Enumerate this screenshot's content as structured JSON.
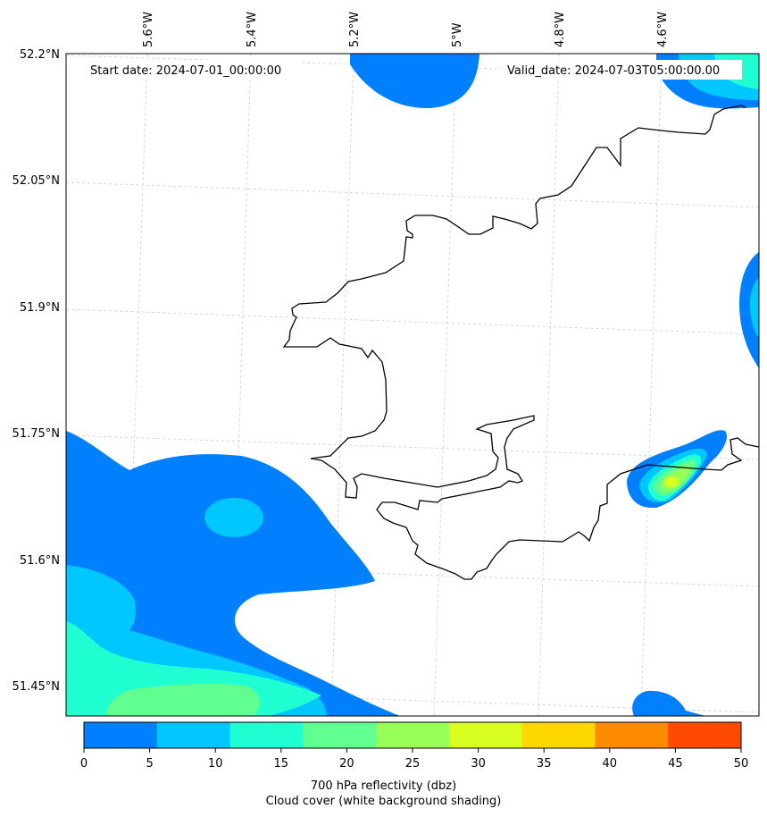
{
  "map": {
    "start_label": "Start date: 2024-07-01_00:00:00",
    "valid_label": "Valid_date: 2024-07-03T05:00:00.00",
    "lon_labels": [
      "5.6°W",
      "5.4°W",
      "5.2°W",
      "5°W",
      "4.8°W",
      "4.6°W"
    ],
    "lat_labels": [
      "52.2°N",
      "52.05°N",
      "51.9°N",
      "51.75°N",
      "51.6°N",
      "51.45°N"
    ]
  },
  "colorbar": {
    "ticks": [
      "0",
      "5",
      "10",
      "15",
      "20",
      "25",
      "30",
      "35",
      "40",
      "45",
      "50"
    ],
    "colors": [
      "#0080ff",
      "#00c8ff",
      "#20ffd2",
      "#60ff90",
      "#98ff58",
      "#d8ff20",
      "#ffd800",
      "#ff8c00",
      "#ff4a00"
    ],
    "caption_line1": "700 hPa reflectivity (dbz)",
    "caption_line2": "Cloud cover (white background shading)"
  }
}
